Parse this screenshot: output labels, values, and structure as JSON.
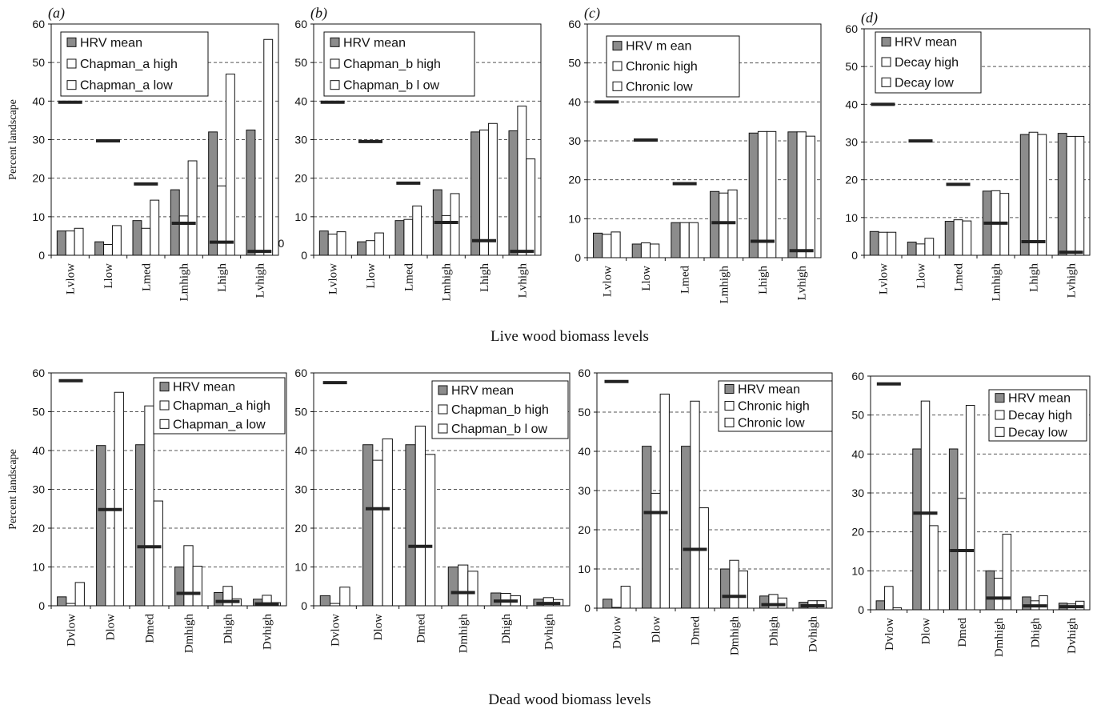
{
  "captions": {
    "top": "Live wood biomass levels",
    "bottom": "Dead wood biomass levels"
  },
  "colors": {
    "hrv_bar": "#8c8c8c",
    "scenario_bar": "#ffffff",
    "marker": "#222222",
    "grid": "#555555"
  },
  "chart_data": [
    {
      "type": "bar",
      "panel": "(a)",
      "ylabel": "Percent landscape",
      "ylim": [
        0,
        60
      ],
      "yticks": [
        0,
        10,
        20,
        30,
        40,
        50,
        60
      ],
      "grid": "dashed horizontal",
      "legend_position": "top-left",
      "categories": [
        "Lvlow",
        "Llow",
        "Lmed",
        "Lmhigh",
        "Lhigh",
        "Lvhigh"
      ],
      "series": [
        {
          "name": "HRV mean",
          "values": [
            6.3,
            3.5,
            9,
            17,
            32,
            32.5
          ]
        },
        {
          "name": "Chapman_a high",
          "values": [
            6.3,
            2.8,
            7,
            10.2,
            18,
            0
          ]
        },
        {
          "name": "Chapman_a low",
          "values": [
            7,
            7.7,
            14.3,
            24.5,
            47,
            56
          ]
        }
      ],
      "markers": [
        39.7,
        29.7,
        18.5,
        8.3,
        3.4,
        1.0
      ],
      "annotations": [
        {
          "category": "Lvhigh",
          "text": "0"
        }
      ]
    },
    {
      "type": "bar",
      "panel": "(b)",
      "ylabel": "",
      "ylim": [
        0,
        60
      ],
      "yticks": [
        0,
        10,
        20,
        30,
        40,
        50,
        60
      ],
      "grid": "dashed horizontal",
      "legend_position": "top-left",
      "categories": [
        "Lvlow",
        "Llow",
        "Lmed",
        "Lmhigh",
        "Lhigh",
        "Lvhigh"
      ],
      "series": [
        {
          "name": "HRV mean",
          "values": [
            6.3,
            3.5,
            9,
            17,
            32,
            32.3
          ]
        },
        {
          "name": "Chapman_b high",
          "values": [
            5.5,
            3.8,
            9.3,
            10.3,
            32.5,
            38.7
          ]
        },
        {
          "name": "Chapman_b l ow",
          "values": [
            6.1,
            5.8,
            12.8,
            16,
            34.2,
            25
          ]
        }
      ],
      "markers": [
        39.7,
        29.5,
        18.7,
        8.5,
        3.8,
        1.0
      ],
      "annotations": []
    },
    {
      "type": "bar",
      "panel": "(c)",
      "ylabel": "",
      "ylim": [
        0,
        60
      ],
      "yticks": [
        0,
        10,
        20,
        30,
        40,
        50,
        60
      ],
      "grid": "dashed horizontal",
      "legend_position": "top-left",
      "categories": [
        "Lvlow",
        "Llow",
        "Lmed",
        "Lmhigh",
        "Lhigh",
        "Lvhigh"
      ],
      "series": [
        {
          "name": "HRV m ean",
          "values": [
            6.3,
            3.5,
            9,
            17,
            32,
            32.3
          ]
        },
        {
          "name": "Chronic high",
          "values": [
            6,
            3.8,
            9,
            16.6,
            32.4,
            32.3
          ]
        },
        {
          "name": "Chronic low",
          "values": [
            6.6,
            3.5,
            9,
            17.4,
            32.4,
            31.2
          ]
        }
      ],
      "markers": [
        40,
        30.2,
        19,
        9,
        4.2,
        1.8
      ],
      "annotations": []
    },
    {
      "type": "bar",
      "panel": "(d)",
      "ylabel": "",
      "ylim": [
        0,
        60
      ],
      "yticks": [
        0,
        10,
        20,
        30,
        40,
        50,
        60
      ],
      "grid": "dashed horizontal",
      "legend_position": "top-left",
      "categories": [
        "Lvlow",
        "Llow",
        "Lmed",
        "Lmhigh",
        "Lhigh",
        "Lvhigh"
      ],
      "series": [
        {
          "name": "HRV mean",
          "values": [
            6.3,
            3.5,
            9,
            17,
            32,
            32.3
          ]
        },
        {
          "name": "Decay high",
          "values": [
            6.1,
            3.0,
            9.4,
            17.1,
            32.6,
            31.5
          ]
        },
        {
          "name": "Decay low",
          "values": [
            6.1,
            4.5,
            9.1,
            16.4,
            32,
            31.5
          ]
        }
      ],
      "markers": [
        40,
        30.3,
        18.8,
        8.5,
        3.6,
        0.8
      ],
      "annotations": []
    },
    {
      "type": "bar",
      "panel": "",
      "ylabel": "Percent landscape",
      "ylim": [
        0,
        60
      ],
      "yticks": [
        0,
        10,
        20,
        30,
        40,
        50,
        60
      ],
      "grid": "dashed horizontal",
      "legend_position": "top-right",
      "categories": [
        "Dvlow",
        "Dlow",
        "Dmed",
        "Dmhigh",
        "Dhigh",
        "Dvhigh"
      ],
      "series": [
        {
          "name": "HRV mean",
          "values": [
            2.3,
            41.3,
            41.5,
            10,
            3.4,
            1.7
          ]
        },
        {
          "name": "Chapman_a high",
          "values": [
            0.6,
            0,
            51.5,
            15.5,
            5,
            2.7
          ]
        },
        {
          "name": "Chapman_a  low",
          "values": [
            6,
            55,
            27,
            10.2,
            1.8,
            0.8
          ]
        }
      ],
      "markers": [
        58,
        24.8,
        15.2,
        3.2,
        1.1,
        0.5
      ],
      "annotations": []
    },
    {
      "type": "bar",
      "panel": "",
      "ylabel": "",
      "ylim": [
        0,
        60
      ],
      "yticks": [
        0,
        10,
        20,
        30,
        40,
        50,
        60
      ],
      "grid": "dashed horizontal",
      "legend_position": "top-right",
      "categories": [
        "Dvlow",
        "Dlow",
        "Dmed",
        "Dmhigh",
        "Dhigh",
        "Dvhigh"
      ],
      "series": [
        {
          "name": "HRV mean",
          "values": [
            2.6,
            41.5,
            41.5,
            10,
            3.3,
            1.7
          ]
        },
        {
          "name": "Chapman_b high",
          "values": [
            0.6,
            37.5,
            46.3,
            10.5,
            3.2,
            2.1
          ]
        },
        {
          "name": "Chapman_b l ow",
          "values": [
            4.8,
            43,
            39,
            8.9,
            2.6,
            1.6
          ]
        }
      ],
      "markers": [
        57.5,
        25,
        15.3,
        3.4,
        1.2,
        0.6
      ],
      "annotations": []
    },
    {
      "type": "bar",
      "panel": "",
      "ylabel": "",
      "ylim": [
        0,
        60
      ],
      "yticks": [
        0,
        10,
        20,
        30,
        40,
        50,
        60
      ],
      "grid": "dashed horizontal",
      "legend_position": "top-right",
      "categories": [
        "Dvlow",
        "Dlow",
        "Dmed",
        "Dmhigh",
        "Dhigh",
        "Dvhigh"
      ],
      "series": [
        {
          "name": "HRV mean",
          "values": [
            2.3,
            41.3,
            41.3,
            10,
            3.1,
            1.5
          ]
        },
        {
          "name": "Chronic high",
          "values": [
            0.2,
            29.3,
            52.8,
            12.2,
            3.5,
            1.9
          ]
        },
        {
          "name": "Chronic low",
          "values": [
            5.6,
            54.6,
            25.6,
            9.5,
            2.6,
            1.9
          ]
        }
      ],
      "markers": [
        57.8,
        24.4,
        15,
        3.0,
        0.9,
        0.6
      ],
      "annotations": []
    },
    {
      "type": "bar",
      "panel": "",
      "ylabel": "",
      "ylim": [
        0,
        60
      ],
      "yticks": [
        0,
        10,
        20,
        30,
        40,
        50,
        60
      ],
      "grid": "dashed horizontal",
      "legend_position": "top-right",
      "categories": [
        "Dvlow",
        "Dlow",
        "Dmed",
        "Dmhigh",
        "Dhigh",
        "Dvhigh"
      ],
      "series": [
        {
          "name": "HRV mean",
          "values": [
            2.3,
            41.3,
            41.3,
            10,
            3.3,
            1.7
          ]
        },
        {
          "name": "Decay high",
          "values": [
            6,
            53.6,
            28.6,
            8.1,
            2.3,
            1.5
          ]
        },
        {
          "name": "Decay  low",
          "values": [
            0.5,
            21.6,
            52.5,
            19.4,
            3.6,
            2.2
          ]
        }
      ],
      "markers": [
        58,
        24.8,
        15.2,
        3.0,
        1.0,
        0.8
      ],
      "annotations": []
    }
  ]
}
